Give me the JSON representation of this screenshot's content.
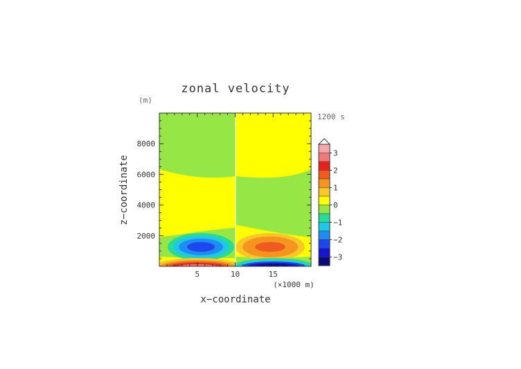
{
  "chart_data": {
    "type": "heatmap",
    "title": "zonal velocity",
    "xlabel": "x−coordinate",
    "ylabel": "z−coordinate",
    "y_unit": "(m)",
    "x_unit": "(×1000 m)",
    "time_label": "1200 s",
    "xlim": [
      0,
      20
    ],
    "ylim": [
      0,
      10000
    ],
    "x_ticks": [
      "5",
      "10",
      "15"
    ],
    "x_tick_values": [
      5,
      10,
      15
    ],
    "y_ticks": [
      "2000",
      "4000",
      "6000",
      "8000"
    ],
    "y_tick_values": [
      2000,
      4000,
      6000,
      8000
    ],
    "colorbar": {
      "labels": [
        "3",
        "2",
        "1",
        "0",
        "−1",
        "−2",
        "−3"
      ],
      "label_values": [
        3,
        2,
        1,
        0,
        -1,
        -2,
        -3
      ],
      "levels": [
        {
          "min": 3.0,
          "max": 3.5,
          "color": "#f5a8a8"
        },
        {
          "min": 2.5,
          "max": 3.0,
          "color": "#f07878"
        },
        {
          "min": 2.0,
          "max": 2.5,
          "color": "#e8201e"
        },
        {
          "min": 1.5,
          "max": 2.0,
          "color": "#f05a1e"
        },
        {
          "min": 1.0,
          "max": 1.5,
          "color": "#f5941e"
        },
        {
          "min": 0.5,
          "max": 1.0,
          "color": "#f8c828"
        },
        {
          "min": 0.0,
          "max": 0.5,
          "color": "#ffff00"
        },
        {
          "min": -0.5,
          "max": 0.0,
          "color": "#96e646"
        },
        {
          "min": -1.0,
          "max": -0.5,
          "color": "#28dc96"
        },
        {
          "min": -1.5,
          "max": -1.0,
          "color": "#1ec8e6"
        },
        {
          "min": -2.0,
          "max": -1.5,
          "color": "#1e8cf0"
        },
        {
          "min": -2.5,
          "max": -2.0,
          "color": "#1e46f0"
        },
        {
          "min": -3.0,
          "max": -2.5,
          "color": "#1414d2"
        },
        {
          "min": -3.5,
          "max": -3.0,
          "color": "#0a0a7d"
        }
      ]
    }
  }
}
